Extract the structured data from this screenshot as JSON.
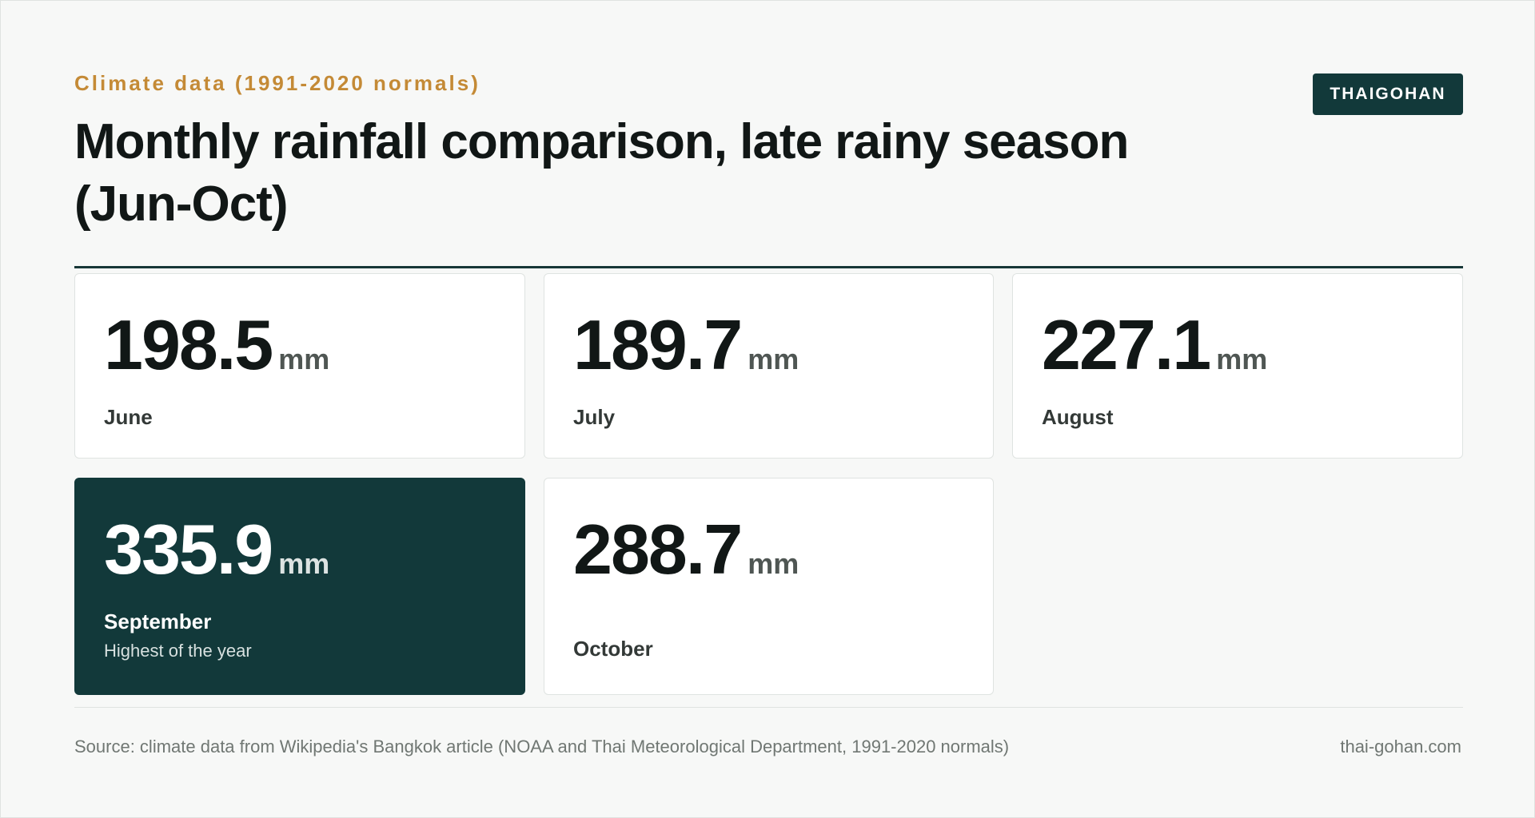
{
  "header": {
    "kicker": "Climate data (1991-2020 normals)",
    "title": "Monthly rainfall comparison, late rainy season (Jun-Oct)",
    "brand": "THAIGOHAN"
  },
  "cards": [
    {
      "value": "198.5",
      "unit": "mm",
      "month": "June"
    },
    {
      "value": "189.7",
      "unit": "mm",
      "month": "July"
    },
    {
      "value": "227.1",
      "unit": "mm",
      "month": "August"
    },
    {
      "value": "335.9",
      "unit": "mm",
      "month": "September",
      "note": "Highest of the year"
    },
    {
      "value": "288.7",
      "unit": "mm",
      "month": "October"
    }
  ],
  "footer": {
    "source": "Source: climate data from Wikipedia's Bangkok article (NOAA and Thai Meteorological Department, 1991-2020 normals)",
    "site": "thai-gohan.com"
  },
  "colors": {
    "accent": "#c48a36",
    "brand": "#12393a",
    "highlight_card": "#12393a",
    "text": "#111716",
    "muted": "#707773"
  }
}
